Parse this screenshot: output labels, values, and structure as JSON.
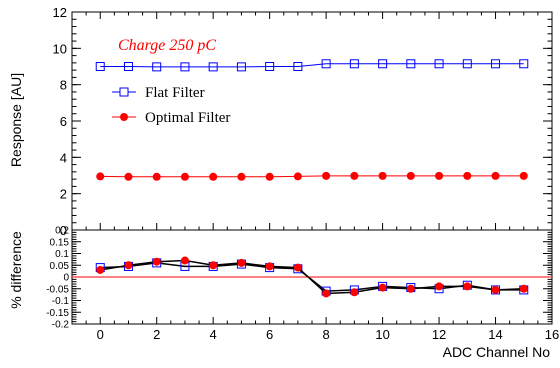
{
  "chart_data": [
    {
      "type": "line",
      "annotation": "Charge 250 pC",
      "ylabel": "Response [AU]",
      "ylim": [
        0,
        12
      ],
      "xlim": [
        -1,
        16
      ],
      "y_ticks": [
        0,
        2,
        4,
        6,
        8,
        10,
        12
      ],
      "y_tick_labels": [
        "0",
        "2",
        "4",
        "6",
        "8",
        "10",
        "12"
      ],
      "grid": false,
      "legend_position": "center-left",
      "x": [
        0,
        1,
        2,
        3,
        4,
        5,
        6,
        7,
        8,
        9,
        10,
        11,
        12,
        13,
        14,
        15
      ],
      "series": [
        {
          "name": "Flat Filter",
          "color": "#0000ff",
          "marker": "open-square",
          "values": [
            9.0,
            9.0,
            8.98,
            8.98,
            8.98,
            8.98,
            9.0,
            9.0,
            9.15,
            9.15,
            9.15,
            9.15,
            9.15,
            9.15,
            9.15,
            9.15
          ]
        },
        {
          "name": "Optimal Filter",
          "color": "#ff0000",
          "marker": "filled-circle",
          "values": [
            2.95,
            2.93,
            2.93,
            2.93,
            2.93,
            2.93,
            2.93,
            2.95,
            2.98,
            2.98,
            2.98,
            2.98,
            2.98,
            2.98,
            2.98,
            2.98
          ]
        }
      ]
    },
    {
      "type": "line",
      "ylabel": "% difference",
      "xlabel": "ADC Channel No",
      "xlim": [
        -1,
        16
      ],
      "ylim": [
        -0.2,
        0.2
      ],
      "x_ticks": [
        0,
        2,
        4,
        6,
        8,
        10,
        12,
        14,
        16
      ],
      "x_tick_labels": [
        "0",
        "2",
        "4",
        "6",
        "8",
        "10",
        "12",
        "14",
        "16"
      ],
      "y_ticks": [
        -0.2,
        -0.15,
        -0.1,
        -0.05,
        0,
        0.05,
        0.1,
        0.15,
        0.2
      ],
      "y_tick_labels": [
        "-0.2",
        "-0.15",
        "-0.1",
        "-0.05",
        "0",
        "0.05",
        "0.1",
        "0.15",
        "0.2"
      ],
      "zero_line_color": "#ff0000",
      "x": [
        0,
        1,
        2,
        3,
        4,
        5,
        6,
        7,
        8,
        9,
        10,
        11,
        12,
        13,
        14,
        15
      ],
      "series": [
        {
          "name": "Flat Filter",
          "color": "#0000ff",
          "marker": "open-square",
          "values": [
            0.04,
            0.045,
            0.06,
            0.045,
            0.045,
            0.055,
            0.04,
            0.035,
            -0.06,
            -0.055,
            -0.04,
            -0.045,
            -0.05,
            -0.035,
            -0.055,
            -0.055
          ]
        },
        {
          "name": "Optimal Filter",
          "color": "#ff0000",
          "marker": "filled-circle",
          "values": [
            0.03,
            0.05,
            0.065,
            0.07,
            0.05,
            0.06,
            0.045,
            0.04,
            -0.07,
            -0.065,
            -0.045,
            -0.05,
            -0.04,
            -0.04,
            -0.055,
            -0.05
          ]
        }
      ]
    }
  ]
}
